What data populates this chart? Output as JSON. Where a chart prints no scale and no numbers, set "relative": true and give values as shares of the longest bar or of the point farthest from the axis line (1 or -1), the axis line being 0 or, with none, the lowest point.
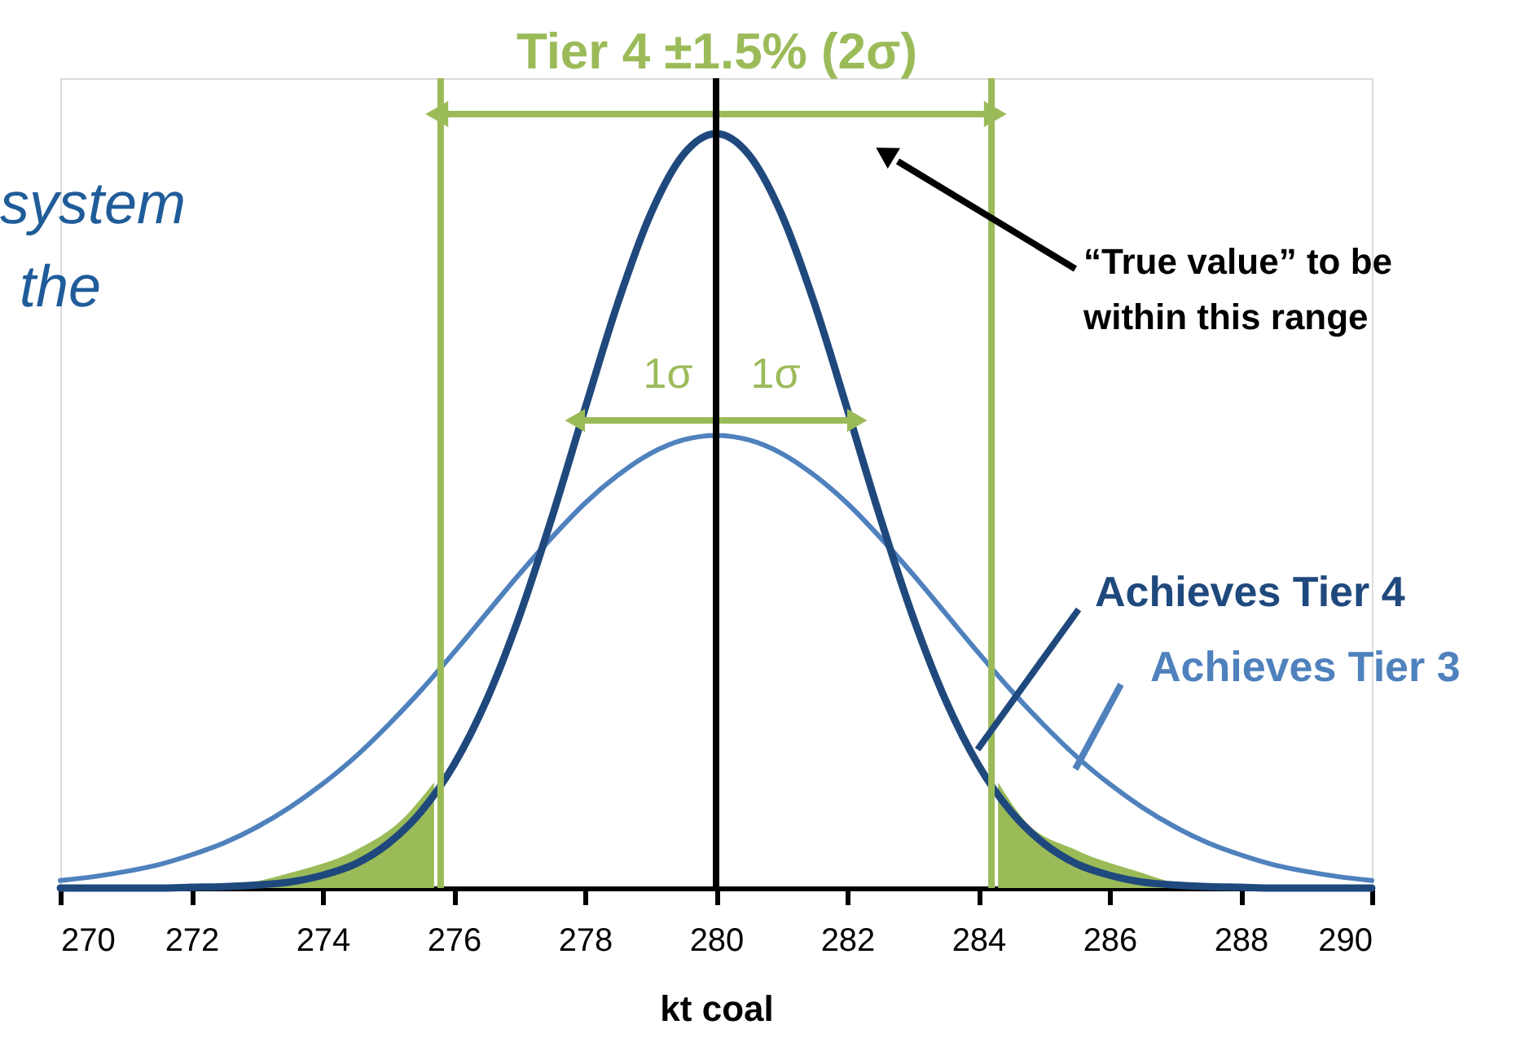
{
  "chart_data": {
    "type": "line",
    "xlabel": "kt coal",
    "relative": true,
    "xlim": [
      270,
      290
    ],
    "xticks": [
      270,
      272,
      274,
      276,
      278,
      280,
      282,
      284,
      286,
      288,
      290
    ],
    "grid": false,
    "x": [
      270,
      270.5,
      271,
      271.5,
      272,
      272.5,
      273,
      273.5,
      274,
      274.5,
      275,
      275.5,
      276,
      276.5,
      277,
      277.5,
      278,
      278.5,
      279,
      279.5,
      280,
      280.5,
      281,
      281.5,
      282,
      282.5,
      283,
      283.5,
      284,
      284.5,
      285,
      285.5,
      286,
      286.5,
      287,
      287.5,
      288,
      288.5,
      289,
      289.5,
      290
    ],
    "series": [
      {
        "name": "Achieves Tier 3",
        "color": "#4f81bd",
        "values": [
          0.01,
          0.015,
          0.022,
          0.031,
          0.044,
          0.06,
          0.081,
          0.107,
          0.138,
          0.174,
          0.216,
          0.262,
          0.312,
          0.364,
          0.416,
          0.465,
          0.51,
          0.547,
          0.576,
          0.594,
          0.6,
          0.594,
          0.576,
          0.547,
          0.51,
          0.465,
          0.416,
          0.364,
          0.312,
          0.262,
          0.216,
          0.174,
          0.138,
          0.107,
          0.081,
          0.06,
          0.044,
          0.031,
          0.022,
          0.015,
          0.01
        ]
      },
      {
        "name": "Achieves Tier 4",
        "color": "#1f497d",
        "values": [
          0,
          0,
          0,
          0,
          0.001,
          0.002,
          0.004,
          0.008,
          0.017,
          0.032,
          0.059,
          0.101,
          0.163,
          0.249,
          0.36,
          0.492,
          0.635,
          0.775,
          0.893,
          0.972,
          1,
          0.972,
          0.893,
          0.775,
          0.635,
          0.492,
          0.36,
          0.249,
          0.163,
          0.101,
          0.059,
          0.032,
          0.017,
          0.008,
          0.004,
          0.002,
          0.001,
          0,
          0,
          0,
          0
        ]
      },
      {
        "type": "area",
        "color": "#9bbb59",
        "x": [
          272.5,
          273.5,
          274.5,
          275.2,
          275.7
        ],
        "values": [
          0,
          0.02,
          0.05,
          0.09,
          0.14
        ]
      },
      {
        "type": "area",
        "color": "#9bbb59",
        "x": [
          284.3,
          284.7,
          285.5,
          286.5,
          287.2
        ],
        "values": [
          0.14,
          0.09,
          0.05,
          0.02,
          0
        ]
      }
    ],
    "ref_lines": [
      {
        "axis": "x",
        "value": 280,
        "color": "#000000"
      },
      {
        "axis": "x",
        "value": 275.8,
        "color": "#9bbb59"
      },
      {
        "axis": "x",
        "value": 284.2,
        "color": "#9bbb59"
      }
    ],
    "annotations": [
      "system",
      "the",
      "“True value” to be\nwithin this range",
      "Tier 4 ±1.5% (2σ)",
      "1σ",
      "1σ"
    ]
  }
}
